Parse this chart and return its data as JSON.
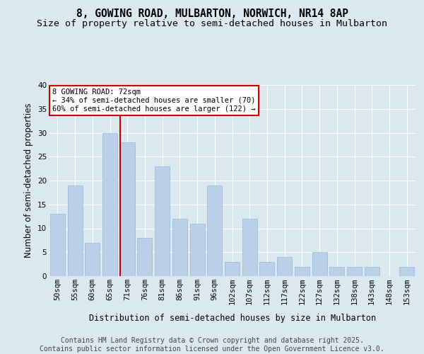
{
  "title1": "8, GOWING ROAD, MULBARTON, NORWICH, NR14 8AP",
  "title2": "Size of property relative to semi-detached houses in Mulbarton",
  "xlabel": "Distribution of semi-detached houses by size in Mulbarton",
  "ylabel": "Number of semi-detached properties",
  "categories": [
    "50sqm",
    "55sqm",
    "60sqm",
    "65sqm",
    "71sqm",
    "76sqm",
    "81sqm",
    "86sqm",
    "91sqm",
    "96sqm",
    "102sqm",
    "107sqm",
    "112sqm",
    "117sqm",
    "122sqm",
    "127sqm",
    "132sqm",
    "138sqm",
    "143sqm",
    "148sqm",
    "153sqm"
  ],
  "values": [
    13,
    19,
    7,
    30,
    28,
    8,
    23,
    12,
    11,
    19,
    3,
    12,
    3,
    4,
    2,
    5,
    2,
    2,
    2,
    0,
    2
  ],
  "bar_color": "#bad0e8",
  "bar_edge_color": "#9ab8d8",
  "highlight_line_color": "#cc0000",
  "highlight_bar_index": 4,
  "annotation_text": "8 GOWING ROAD: 72sqm\n← 34% of semi-detached houses are smaller (70)\n60% of semi-detached houses are larger (122) →",
  "ylim": [
    0,
    40
  ],
  "yticks": [
    0,
    5,
    10,
    15,
    20,
    25,
    30,
    35,
    40
  ],
  "bg_color": "#dce8f0",
  "grid_color": "#ffffff",
  "title_fontsize": 10.5,
  "subtitle_fontsize": 9.5,
  "axis_label_fontsize": 8.5,
  "tick_fontsize": 7.5,
  "annot_fontsize": 7.5,
  "footer_fontsize": 7,
  "footer_text": "Contains HM Land Registry data © Crown copyright and database right 2025.\nContains public sector information licensed under the Open Government Licence v3.0."
}
